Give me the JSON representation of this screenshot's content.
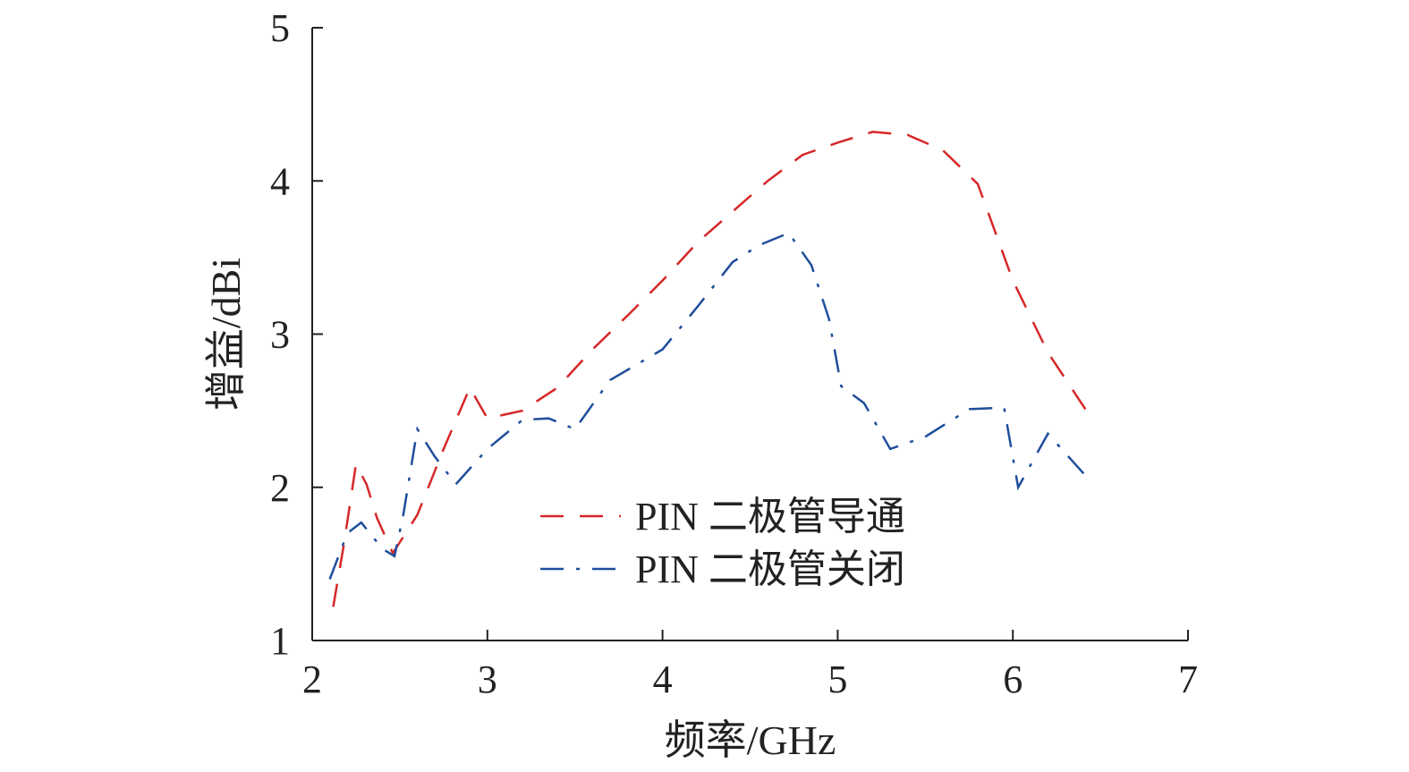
{
  "chart_data": {
    "type": "line",
    "xlabel": "频率/GHz",
    "ylabel": "增益/dBi",
    "xlim": [
      2,
      7
    ],
    "ylim": [
      1,
      5
    ],
    "xticks": [
      "2",
      "3",
      "4",
      "5",
      "6",
      "7"
    ],
    "yticks": [
      "1",
      "2",
      "3",
      "4",
      "5"
    ],
    "grid": false,
    "legend_position": "lower-center",
    "series": [
      {
        "name": "PIN 二极管导通",
        "color": "#d62728",
        "dash": "dashed",
        "points": [
          [
            2.12,
            1.22
          ],
          [
            2.18,
            1.62
          ],
          [
            2.25,
            2.15
          ],
          [
            2.31,
            2.02
          ],
          [
            2.37,
            1.8
          ],
          [
            2.46,
            1.57
          ],
          [
            2.6,
            1.82
          ],
          [
            2.75,
            2.25
          ],
          [
            2.9,
            2.65
          ],
          [
            3.0,
            2.45
          ],
          [
            3.2,
            2.5
          ],
          [
            3.4,
            2.65
          ],
          [
            3.6,
            2.9
          ],
          [
            3.8,
            3.12
          ],
          [
            4.0,
            3.35
          ],
          [
            4.2,
            3.6
          ],
          [
            4.4,
            3.8
          ],
          [
            4.6,
            4.0
          ],
          [
            4.8,
            4.17
          ],
          [
            5.0,
            4.25
          ],
          [
            5.2,
            4.32
          ],
          [
            5.4,
            4.3
          ],
          [
            5.6,
            4.2
          ],
          [
            5.8,
            3.98
          ],
          [
            6.0,
            3.35
          ],
          [
            6.2,
            2.88
          ],
          [
            6.42,
            2.5
          ]
        ]
      },
      {
        "name": "PIN 二极管关闭",
        "color": "#1f4e9c",
        "dash": "dashdot",
        "points": [
          [
            2.1,
            1.4
          ],
          [
            2.2,
            1.7
          ],
          [
            2.28,
            1.77
          ],
          [
            2.4,
            1.6
          ],
          [
            2.47,
            1.55
          ],
          [
            2.52,
            1.82
          ],
          [
            2.6,
            2.38
          ],
          [
            2.7,
            2.2
          ],
          [
            2.82,
            2.02
          ],
          [
            3.0,
            2.25
          ],
          [
            3.2,
            2.44
          ],
          [
            3.35,
            2.45
          ],
          [
            3.5,
            2.38
          ],
          [
            3.7,
            2.7
          ],
          [
            3.85,
            2.8
          ],
          [
            4.0,
            2.9
          ],
          [
            4.2,
            3.18
          ],
          [
            4.4,
            3.47
          ],
          [
            4.55,
            3.58
          ],
          [
            4.72,
            3.66
          ],
          [
            4.85,
            3.45
          ],
          [
            4.95,
            3.1
          ],
          [
            5.02,
            2.66
          ],
          [
            5.15,
            2.55
          ],
          [
            5.3,
            2.25
          ],
          [
            5.5,
            2.33
          ],
          [
            5.75,
            2.51
          ],
          [
            5.95,
            2.52
          ],
          [
            6.03,
            2.0
          ],
          [
            6.2,
            2.35
          ],
          [
            6.42,
            2.07
          ]
        ]
      }
    ]
  }
}
